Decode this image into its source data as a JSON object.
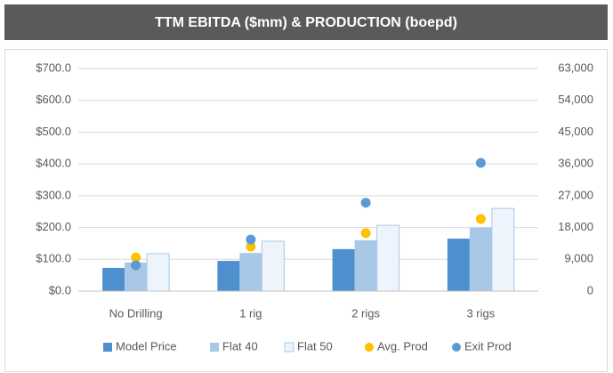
{
  "chart_data": {
    "type": "bar",
    "title": "TTM EBITDA ($mm) & PRODUCTION (boepd)",
    "categories": [
      "No Drilling",
      "1 rig",
      "2 rigs",
      "3 rigs"
    ],
    "series": [
      {
        "name": "Model Price",
        "color": "#4e8fce",
        "values": [
          73,
          95,
          132,
          165
        ]
      },
      {
        "name": "Flat 40",
        "color": "#a9c8e8",
        "values": [
          90,
          120,
          160,
          200
        ]
      },
      {
        "name": "Flat 50",
        "color": "#eef4fb",
        "values": [
          118,
          157,
          207,
          260
        ]
      },
      {
        "name": "Avg. Prod",
        "color": "#ffc000",
        "type": "scatter",
        "axis": "y2",
        "values": [
          9500,
          12600,
          16400,
          20400
        ]
      },
      {
        "name": "Exit Prod",
        "color": "#5b9bd5",
        "type": "scatter",
        "axis": "y2",
        "values": [
          7300,
          14600,
          25000,
          36300
        ]
      }
    ],
    "ylim": [
      0,
      700
    ],
    "yticks": [
      {
        "value": 0,
        "label": "$0.0"
      },
      {
        "value": 100,
        "label": "$100.0"
      },
      {
        "value": 200,
        "label": "$200.0"
      },
      {
        "value": 300,
        "label": "$300.0"
      },
      {
        "value": 400,
        "label": "$400.0"
      },
      {
        "value": 500,
        "label": "$500.0"
      },
      {
        "value": 600,
        "label": "$600.0"
      },
      {
        "value": 700,
        "label": "$700.0"
      }
    ],
    "y2lim": [
      0,
      63000
    ],
    "y2ticks": [
      0,
      {
        "value": 9000,
        "label": "9,000"
      },
      {
        "value": 18000,
        "label": "18,000"
      },
      {
        "value": 27000,
        "label": "27,000"
      },
      {
        "value": 36000,
        "label": "36,000"
      },
      {
        "value": 45000,
        "label": "45,000"
      },
      {
        "value": 54000,
        "label": "54,000"
      },
      {
        "value": 63000,
        "label": "63,000"
      }
    ],
    "grid": true,
    "legend": "bottom"
  }
}
